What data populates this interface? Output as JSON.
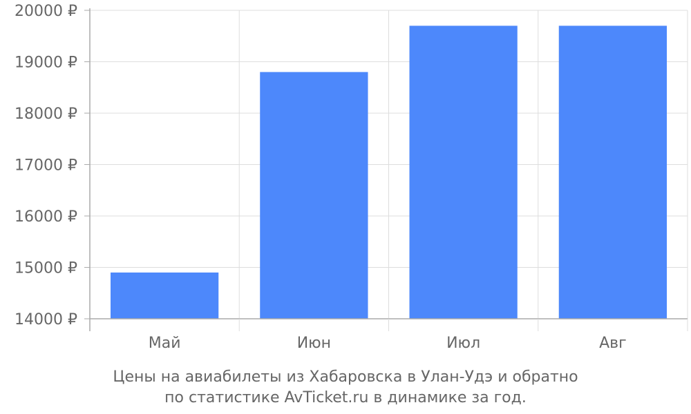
{
  "chart_data": {
    "type": "bar",
    "categories": [
      "Май",
      "Июн",
      "Июл",
      "Авг"
    ],
    "values": [
      14900,
      18800,
      19700,
      19700
    ],
    "ylim": [
      14000,
      20000
    ],
    "yticks": [
      14000,
      15000,
      16000,
      17000,
      18000,
      19000,
      20000
    ],
    "ytick_suffix": " ₽",
    "grid": true,
    "legend": "none",
    "bar_color": "#4d88fb",
    "grid_color": "#dddddd",
    "axis_color": "#aaaaaa",
    "text_color": "#666666"
  },
  "caption": {
    "line1": "Цены на авиабилеты из Хабаровска в Улан-Удэ и обратно",
    "line2": "по статистике AvTicket.ru в динамике за год."
  }
}
